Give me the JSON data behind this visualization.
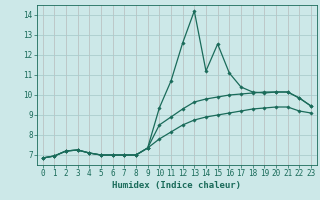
{
  "xlabel": "Humidex (Indice chaleur)",
  "background_color": "#cce8e8",
  "grid_color": "#aacccc",
  "line_color": "#1a6b5a",
  "xlim": [
    -0.5,
    23.5
  ],
  "ylim": [
    6.5,
    14.5
  ],
  "x_ticks": [
    0,
    1,
    2,
    3,
    4,
    5,
    6,
    7,
    8,
    9,
    10,
    11,
    12,
    13,
    14,
    15,
    16,
    17,
    18,
    19,
    20,
    21,
    22,
    23
  ],
  "y_ticks": [
    7,
    8,
    9,
    10,
    11,
    12,
    13,
    14
  ],
  "main_x": [
    0,
    1,
    2,
    3,
    4,
    5,
    6,
    7,
    8,
    9,
    10,
    11,
    12,
    13,
    14,
    15,
    16,
    17,
    18,
    19,
    20,
    21,
    22,
    23
  ],
  "main_y": [
    6.85,
    6.95,
    7.2,
    7.25,
    7.1,
    7.0,
    7.0,
    7.0,
    7.0,
    7.35,
    9.35,
    10.7,
    12.6,
    14.2,
    11.2,
    12.55,
    11.1,
    10.4,
    10.15,
    10.1,
    10.15,
    10.15,
    9.85,
    9.45
  ],
  "upper_x": [
    0,
    1,
    2,
    3,
    4,
    5,
    6,
    7,
    8,
    9,
    10,
    11,
    12,
    13,
    14,
    15,
    16,
    17,
    18,
    19,
    20,
    21,
    22,
    23
  ],
  "upper_y": [
    6.85,
    6.95,
    7.2,
    7.25,
    7.1,
    7.0,
    7.0,
    7.0,
    7.0,
    7.35,
    8.5,
    8.9,
    9.3,
    9.65,
    9.8,
    9.9,
    10.0,
    10.05,
    10.1,
    10.15,
    10.15,
    10.15,
    9.85,
    9.45
  ],
  "lower_x": [
    0,
    1,
    2,
    3,
    4,
    5,
    6,
    7,
    8,
    9,
    10,
    11,
    12,
    13,
    14,
    15,
    16,
    17,
    18,
    19,
    20,
    21,
    22,
    23
  ],
  "lower_y": [
    6.85,
    6.95,
    7.2,
    7.25,
    7.1,
    7.0,
    7.0,
    7.0,
    7.0,
    7.35,
    7.8,
    8.15,
    8.5,
    8.75,
    8.9,
    9.0,
    9.1,
    9.2,
    9.3,
    9.35,
    9.4,
    9.4,
    9.2,
    9.1
  ],
  "tick_fontsize": 5.5,
  "xlabel_fontsize": 6.5
}
